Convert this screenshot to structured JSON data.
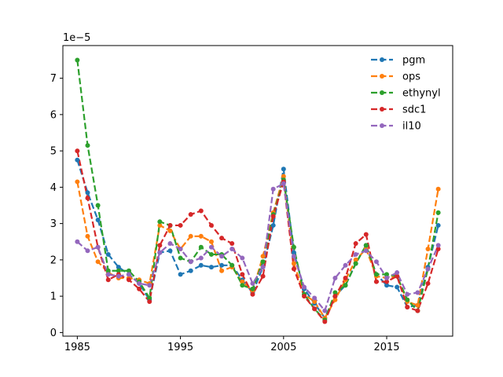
{
  "chart_data": {
    "type": "line",
    "title": "",
    "xlabel": "",
    "ylabel": "",
    "y_offset_label": "1e−5",
    "xlim": [
      1983.6,
      2021.4
    ],
    "ylim": [
      -0.1,
      7.9
    ],
    "xticks": [
      1985,
      1995,
      2005,
      2015
    ],
    "yticks": [
      0,
      1,
      2,
      3,
      4,
      5,
      6,
      7
    ],
    "grid": false,
    "legend_position": "upper right",
    "line_style": "dashed",
    "marker": "circle",
    "x": [
      1985,
      1986,
      1987,
      1988,
      1989,
      1990,
      1991,
      1992,
      1993,
      1994,
      1995,
      1996,
      1997,
      1998,
      1999,
      2000,
      2001,
      2002,
      2003,
      2004,
      2005,
      2006,
      2007,
      2008,
      2009,
      2010,
      2011,
      2012,
      2013,
      2014,
      2015,
      2016,
      2017,
      2018,
      2019,
      2020
    ],
    "series": [
      {
        "name": "pgm",
        "color": "#1f77b4",
        "values": [
          4.75,
          3.85,
          3.1,
          2.15,
          1.8,
          1.6,
          1.35,
          0.9,
          2.2,
          2.25,
          1.6,
          1.7,
          1.85,
          1.8,
          1.85,
          1.85,
          1.45,
          1.1,
          1.8,
          2.95,
          4.5,
          2.2,
          1.2,
          0.8,
          0.4,
          1.0,
          1.3,
          1.9,
          2.4,
          1.6,
          1.3,
          1.25,
          0.7,
          0.75,
          1.8,
          2.95
        ]
      },
      {
        "name": "ops",
        "color": "#ff7f0e",
        "values": [
          4.15,
          2.65,
          1.95,
          1.65,
          1.5,
          1.5,
          1.45,
          1.35,
          2.95,
          2.8,
          2.3,
          2.65,
          2.65,
          2.5,
          1.7,
          1.8,
          1.4,
          1.15,
          2.1,
          3.3,
          4.3,
          1.9,
          1.05,
          0.85,
          0.4,
          0.9,
          1.45,
          2.0,
          2.3,
          1.55,
          1.5,
          1.55,
          0.85,
          0.75,
          2.3,
          3.95
        ]
      },
      {
        "name": "ethynyl",
        "color": "#2ca02c",
        "values": [
          7.5,
          5.15,
          3.5,
          1.7,
          1.7,
          1.7,
          1.4,
          0.95,
          3.05,
          2.95,
          2.05,
          1.95,
          2.35,
          2.15,
          2.15,
          1.85,
          1.3,
          1.2,
          1.95,
          3.25,
          4.2,
          2.35,
          1.05,
          0.65,
          0.35,
          1.1,
          1.3,
          1.9,
          2.4,
          1.6,
          1.6,
          1.55,
          0.9,
          0.6,
          1.75,
          3.3
        ]
      },
      {
        "name": "sdc1",
        "color": "#d62728",
        "values": [
          5.0,
          3.7,
          2.35,
          1.45,
          1.6,
          1.45,
          1.2,
          0.85,
          2.4,
          2.95,
          2.95,
          3.25,
          3.35,
          2.95,
          2.6,
          2.45,
          1.6,
          1.05,
          1.55,
          3.2,
          4.15,
          1.75,
          1.0,
          0.65,
          0.3,
          1.0,
          1.5,
          2.45,
          2.7,
          1.4,
          1.4,
          1.55,
          0.7,
          0.6,
          1.35,
          2.3
        ]
      },
      {
        "name": "il10",
        "color": "#9467bd",
        "values": [
          2.5,
          2.25,
          2.35,
          1.6,
          1.55,
          1.6,
          1.35,
          1.3,
          2.2,
          2.45,
          2.3,
          1.95,
          2.05,
          2.35,
          2.1,
          2.3,
          2.05,
          1.35,
          1.8,
          3.95,
          4.1,
          2.1,
          1.25,
          0.95,
          0.6,
          1.5,
          1.85,
          2.15,
          2.25,
          1.95,
          1.5,
          1.65,
          1.05,
          1.1,
          1.75,
          2.4
        ]
      }
    ]
  }
}
